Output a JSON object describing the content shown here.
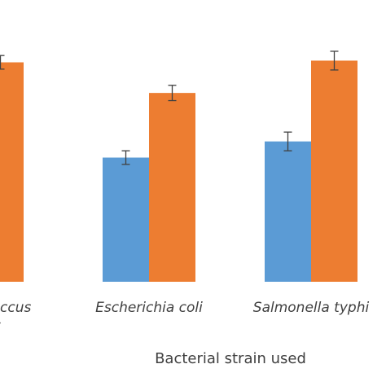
{
  "chart_data": {
    "type": "bar",
    "title": "",
    "xlabel": "Bacterial strain used",
    "ylabel": "",
    "categories": [
      [
        "Staphylococcus",
        "aureus"
      ],
      [
        "Escherichia coli"
      ],
      [
        "Salmonella typhi"
      ]
    ],
    "series": [
      {
        "color": "#5B9BD5",
        "values": [
          null,
          146,
          165
        ],
        "errors": [
          null,
          8,
          11
        ]
      },
      {
        "color": "#ED7D31",
        "values": [
          258,
          222,
          260
        ],
        "errors": [
          null,
          9,
          11
        ]
      }
    ],
    "series_errors_extra": [
      8
    ],
    "ylim": [
      0,
      270
    ],
    "grid": false,
    "legend": "none"
  }
}
